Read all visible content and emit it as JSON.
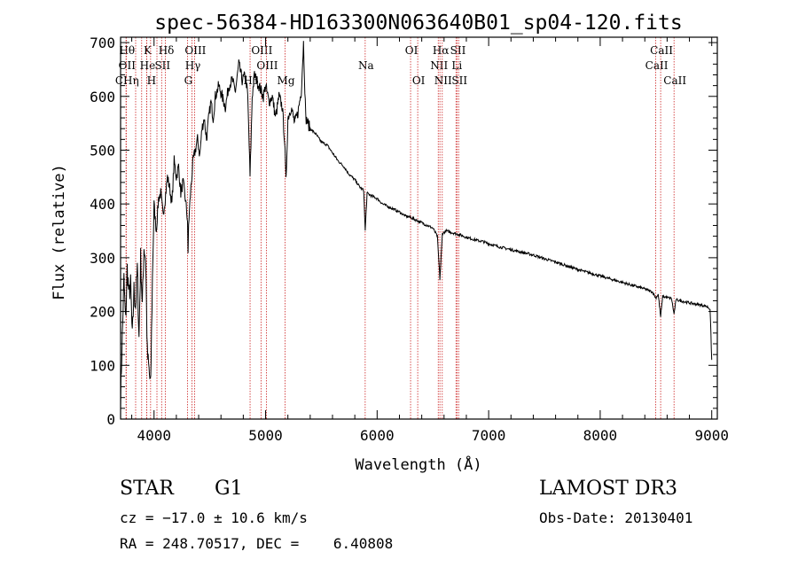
{
  "chart_data": {
    "type": "line",
    "title": "spec-56384-HD163300N063640B01_sp04-120.fits",
    "xlabel": "Wavelength (Å)",
    "ylabel": "Flux (relative)",
    "xlim": [
      3700,
      9050
    ],
    "ylim": [
      0,
      710
    ],
    "x_ticks": [
      4000,
      5000,
      6000,
      7000,
      8000,
      9000
    ],
    "y_ticks": [
      0,
      100,
      200,
      300,
      400,
      500,
      600,
      700
    ],
    "grid": false,
    "line_color": "#000000",
    "marker_color": "#cc2222",
    "spectrum": [
      [
        3700,
        40
      ],
      [
        3715,
        150
      ],
      [
        3730,
        260
      ],
      [
        3745,
        180
      ],
      [
        3760,
        280
      ],
      [
        3775,
        230
      ],
      [
        3790,
        250
      ],
      [
        3805,
        150
      ],
      [
        3820,
        240
      ],
      [
        3835,
        210
      ],
      [
        3850,
        280
      ],
      [
        3865,
        150
      ],
      [
        3880,
        300
      ],
      [
        3895,
        210
      ],
      [
        3910,
        320
      ],
      [
        3925,
        300
      ],
      [
        3940,
        120
      ],
      [
        3955,
        90
      ],
      [
        3970,
        60
      ],
      [
        3985,
        260
      ],
      [
        4000,
        400
      ],
      [
        4020,
        350
      ],
      [
        4040,
        410
      ],
      [
        4060,
        420
      ],
      [
        4080,
        380
      ],
      [
        4100,
        410
      ],
      [
        4120,
        450
      ],
      [
        4140,
        430
      ],
      [
        4160,
        400
      ],
      [
        4180,
        480
      ],
      [
        4200,
        450
      ],
      [
        4220,
        470
      ],
      [
        4240,
        420
      ],
      [
        4260,
        440
      ],
      [
        4280,
        410
      ],
      [
        4300,
        370
      ],
      [
        4305,
        300
      ],
      [
        4310,
        360
      ],
      [
        4330,
        430
      ],
      [
        4350,
        480
      ],
      [
        4370,
        500
      ],
      [
        4390,
        520
      ],
      [
        4410,
        490
      ],
      [
        4430,
        540
      ],
      [
        4450,
        560
      ],
      [
        4470,
        520
      ],
      [
        4490,
        560
      ],
      [
        4510,
        590
      ],
      [
        4530,
        560
      ],
      [
        4550,
        600
      ],
      [
        4580,
        620
      ],
      [
        4610,
        600
      ],
      [
        4640,
        580
      ],
      [
        4670,
        620
      ],
      [
        4700,
        630
      ],
      [
        4730,
        610
      ],
      [
        4760,
        660
      ],
      [
        4790,
        630
      ],
      [
        4820,
        640
      ],
      [
        4840,
        600
      ],
      [
        4861,
        450
      ],
      [
        4880,
        600
      ],
      [
        4900,
        640
      ],
      [
        4920,
        630
      ],
      [
        4940,
        620
      ],
      [
        4960,
        610
      ],
      [
        4980,
        600
      ],
      [
        5000,
        620
      ],
      [
        5030,
        590
      ],
      [
        5060,
        600
      ],
      [
        5090,
        560
      ],
      [
        5120,
        600
      ],
      [
        5150,
        580
      ],
      [
        5170,
        520
      ],
      [
        5183,
        440
      ],
      [
        5200,
        560
      ],
      [
        5230,
        580
      ],
      [
        5260,
        550
      ],
      [
        5290,
        570
      ],
      [
        5320,
        610
      ],
      [
        5340,
        700
      ],
      [
        5360,
        560
      ],
      [
        5400,
        540
      ],
      [
        5450,
        530
      ],
      [
        5500,
        515
      ],
      [
        5550,
        510
      ],
      [
        5600,
        495
      ],
      [
        5650,
        480
      ],
      [
        5700,
        470
      ],
      [
        5750,
        455
      ],
      [
        5800,
        445
      ],
      [
        5850,
        430
      ],
      [
        5880,
        425
      ],
      [
        5893,
        350
      ],
      [
        5910,
        420
      ],
      [
        5950,
        415
      ],
      [
        6000,
        410
      ],
      [
        6050,
        400
      ],
      [
        6100,
        395
      ],
      [
        6150,
        390
      ],
      [
        6200,
        385
      ],
      [
        6250,
        378
      ],
      [
        6300,
        375
      ],
      [
        6350,
        370
      ],
      [
        6400,
        365
      ],
      [
        6450,
        360
      ],
      [
        6500,
        355
      ],
      [
        6540,
        340
      ],
      [
        6563,
        260
      ],
      [
        6585,
        345
      ],
      [
        6620,
        350
      ],
      [
        6650,
        348
      ],
      [
        6700,
        345
      ],
      [
        6750,
        342
      ],
      [
        6800,
        338
      ],
      [
        6850,
        335
      ],
      [
        6900,
        332
      ],
      [
        6950,
        330
      ],
      [
        7000,
        326
      ],
      [
        7100,
        320
      ],
      [
        7200,
        315
      ],
      [
        7300,
        310
      ],
      [
        7400,
        305
      ],
      [
        7500,
        298
      ],
      [
        7600,
        292
      ],
      [
        7700,
        285
      ],
      [
        7800,
        278
      ],
      [
        7900,
        272
      ],
      [
        8000,
        266
      ],
      [
        8100,
        260
      ],
      [
        8200,
        254
      ],
      [
        8300,
        248
      ],
      [
        8400,
        242
      ],
      [
        8470,
        236
      ],
      [
        8498,
        225
      ],
      [
        8520,
        232
      ],
      [
        8542,
        190
      ],
      [
        8560,
        228
      ],
      [
        8600,
        226
      ],
      [
        8640,
        224
      ],
      [
        8662,
        195
      ],
      [
        8680,
        222
      ],
      [
        8720,
        220
      ],
      [
        8760,
        218
      ],
      [
        8800,
        216
      ],
      [
        8850,
        214
      ],
      [
        8900,
        212
      ],
      [
        8950,
        210
      ],
      [
        8985,
        205
      ],
      [
        9000,
        110
      ]
    ],
    "noise_seed": 7,
    "lines": [
      {
        "wl": 3750,
        "label": "Hθ",
        "row": 0
      },
      {
        "wl": 3750,
        "label": "OII",
        "row": 1
      },
      {
        "wl": 3750,
        "label": "CHη",
        "row": 2
      },
      {
        "wl": 3835,
        "label": "",
        "row": -1
      },
      {
        "wl": 3889,
        "label": "",
        "row": -1
      },
      {
        "wl": 3934,
        "label": "K",
        "row": 0
      },
      {
        "wl": 3934,
        "label": "He",
        "row": 1
      },
      {
        "wl": 3969,
        "label": "H",
        "row": 2
      },
      {
        "wl": 4026,
        "label": "",
        "row": -1
      },
      {
        "wl": 4068,
        "label": "SII",
        "row": 1
      },
      {
        "wl": 4102,
        "label": "Hδ",
        "row": 0
      },
      {
        "wl": 4300,
        "label": "G",
        "row": 2
      },
      {
        "wl": 4340,
        "label": "Hγ",
        "row": 1
      },
      {
        "wl": 4363,
        "label": "OIII",
        "row": 0
      },
      {
        "wl": 4861,
        "label": "Hβ",
        "row": 2
      },
      {
        "wl": 4959,
        "label": "OIII",
        "row": 0
      },
      {
        "wl": 5007,
        "label": "OIII",
        "row": 1
      },
      {
        "wl": 5175,
        "label": "Mg",
        "row": 2
      },
      {
        "wl": 5893,
        "label": "Na",
        "row": 1
      },
      {
        "wl": 6300,
        "label": "OI",
        "row": 0
      },
      {
        "wl": 6364,
        "label": "OI",
        "row": 2
      },
      {
        "wl": 6548,
        "label": "NII",
        "row": 1
      },
      {
        "wl": 6563,
        "label": "Hα",
        "row": 0
      },
      {
        "wl": 6584,
        "label": "NII",
        "row": 2
      },
      {
        "wl": 6707,
        "label": "Li",
        "row": 1
      },
      {
        "wl": 6717,
        "label": "SII",
        "row": 0
      },
      {
        "wl": 6731,
        "label": "SII",
        "row": 2
      },
      {
        "wl": 8498,
        "label": "CaII",
        "row": 1
      },
      {
        "wl": 8542,
        "label": "CaII",
        "row": 0
      },
      {
        "wl": 8662,
        "label": "CaII",
        "row": 2
      }
    ]
  },
  "info": {
    "object_type": "STAR",
    "subclass": "G1",
    "survey": "LAMOST DR3",
    "cz": "cz = −17.0 ± 10.6 km/s",
    "obs_date": "Obs-Date: 20130401",
    "coords": "RA = 248.70517, DEC =    6.40808"
  }
}
